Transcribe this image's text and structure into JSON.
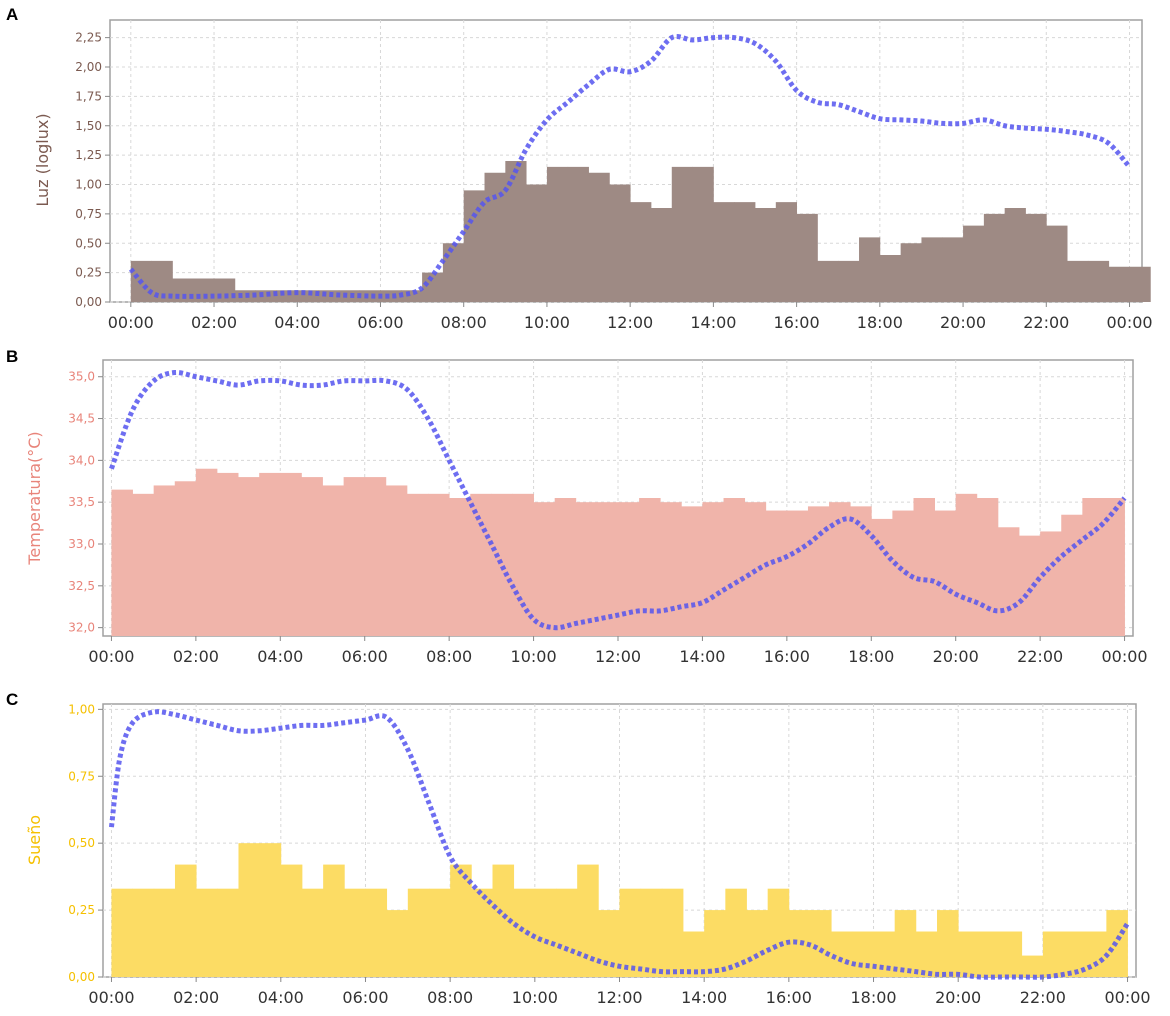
{
  "panels": [
    {
      "letter": "A",
      "ylabel": "Luz (loglux)",
      "label_color": "#7b5a50",
      "bar_color": "#9e8a84",
      "line_color": "#5555ee",
      "yticks": [
        "0,00",
        "0,25",
        "0,50",
        "0,75",
        "1,00",
        "1,25",
        "1,50",
        "1,75",
        "2,00",
        "2,25"
      ],
      "xticks": [
        "00:00",
        "02:00",
        "04:00",
        "06:00",
        "08:00",
        "10:00",
        "12:00",
        "14:00",
        "16:00",
        "18:00",
        "20:00",
        "22:00",
        "00:00"
      ]
    },
    {
      "letter": "B",
      "ylabel": "Temperatura(°C)",
      "label_color": "#e8847a",
      "bar_color": "#f0b4aa",
      "line_color": "#5555ee",
      "yticks": [
        "32,0",
        "32,5",
        "33,0",
        "33,5",
        "34,0",
        "34,5",
        "35,0"
      ],
      "xticks": [
        "00:00",
        "02:00",
        "04:00",
        "06:00",
        "08:00",
        "10:00",
        "12:00",
        "14:00",
        "16:00",
        "18:00",
        "20:00",
        "22:00",
        "00:00"
      ]
    },
    {
      "letter": "C",
      "ylabel": "Sueño",
      "label_color": "#f5c000",
      "bar_color": "#fcdc64",
      "line_color": "#5555ee",
      "yticks": [
        "0,00",
        "0,25",
        "0,50",
        "0,75",
        "1,00"
      ],
      "xticks": [
        "00:00",
        "02:00",
        "04:00",
        "06:00",
        "08:00",
        "10:00",
        "12:00",
        "14:00",
        "16:00",
        "18:00",
        "20:00",
        "22:00",
        "00:00"
      ]
    }
  ],
  "chart_data": [
    {
      "type": "bar",
      "ylabel": "Luz (loglux)",
      "ylim": [
        0,
        2.4
      ],
      "xlim": [
        -0.5,
        24.3
      ],
      "grid": true,
      "bars": {
        "x": [
          0,
          0.5,
          1,
          1.5,
          2,
          2.5,
          3,
          3.5,
          4,
          4.5,
          5,
          5.5,
          6,
          6.5,
          7,
          7.5,
          8,
          8.5,
          9,
          9.5,
          10,
          10.5,
          11,
          11.5,
          12,
          12.5,
          13,
          13.5,
          14,
          14.5,
          15,
          15.5,
          16,
          16.5,
          17,
          17.5,
          18,
          18.5,
          19,
          19.5,
          20,
          20.5,
          21,
          21.5,
          22,
          22.5,
          23,
          23.5,
          24
        ],
        "values": [
          0.35,
          0.35,
          0.2,
          0.2,
          0.2,
          0.1,
          0.1,
          0.1,
          0.1,
          0.1,
          0.1,
          0.1,
          0.1,
          0.1,
          0.25,
          0.5,
          0.95,
          1.1,
          1.2,
          1.0,
          1.15,
          1.15,
          1.1,
          1.0,
          0.85,
          0.8,
          1.15,
          1.15,
          0.85,
          0.85,
          0.8,
          0.85,
          0.75,
          0.35,
          0.35,
          0.55,
          0.4,
          0.5,
          0.55,
          0.55,
          0.65,
          0.75,
          0.8,
          0.75,
          0.65,
          0.35,
          0.35,
          0.3,
          0.3
        ]
      },
      "line": {
        "x": [
          0,
          0.5,
          1,
          2,
          3,
          4,
          5,
          6,
          6.5,
          7,
          7.5,
          8,
          8.5,
          9,
          9.5,
          10,
          10.5,
          11,
          11.5,
          12,
          12.5,
          13,
          13.5,
          14,
          14.5,
          15,
          15.5,
          16,
          16.5,
          17,
          17.5,
          18,
          18.5,
          19,
          19.5,
          20,
          20.5,
          21,
          21.5,
          22,
          22.5,
          23,
          23.5,
          24
        ],
        "values": [
          0.28,
          0.08,
          0.05,
          0.05,
          0.06,
          0.08,
          0.06,
          0.05,
          0.06,
          0.12,
          0.35,
          0.6,
          0.85,
          0.95,
          1.3,
          1.55,
          1.7,
          1.85,
          1.98,
          1.96,
          2.05,
          2.25,
          2.23,
          2.25,
          2.25,
          2.2,
          2.05,
          1.8,
          1.7,
          1.68,
          1.62,
          1.56,
          1.55,
          1.54,
          1.52,
          1.52,
          1.55,
          1.5,
          1.48,
          1.47,
          1.45,
          1.42,
          1.35,
          1.15
        ]
      }
    },
    {
      "type": "bar",
      "ylabel": "Temperatura(°C)",
      "ylim": [
        31.9,
        35.2
      ],
      "xlim": [
        -0.2,
        24.2
      ],
      "grid": true,
      "bars": {
        "x": [
          0,
          0.5,
          1,
          1.5,
          2,
          2.5,
          3,
          3.5,
          4,
          4.5,
          5,
          5.5,
          6,
          6.5,
          7,
          7.5,
          8,
          8.5,
          9,
          9.5,
          10,
          10.5,
          11,
          11.5,
          12,
          12.5,
          13,
          13.5,
          14,
          14.5,
          15,
          15.5,
          16,
          16.5,
          17,
          17.5,
          18,
          18.5,
          19,
          19.5,
          20,
          20.5,
          21,
          21.5,
          22,
          22.5,
          23,
          23.5
        ],
        "values": [
          33.65,
          33.6,
          33.7,
          33.75,
          33.9,
          33.85,
          33.8,
          33.85,
          33.85,
          33.8,
          33.7,
          33.8,
          33.8,
          33.7,
          33.6,
          33.6,
          33.55,
          33.6,
          33.6,
          33.6,
          33.5,
          33.55,
          33.5,
          33.5,
          33.5,
          33.55,
          33.5,
          33.45,
          33.5,
          33.55,
          33.5,
          33.4,
          33.4,
          33.45,
          33.5,
          33.45,
          33.3,
          33.4,
          33.55,
          33.4,
          33.6,
          33.55,
          33.2,
          33.1,
          33.15,
          33.35,
          33.55,
          33.55
        ]
      },
      "line": {
        "x": [
          0,
          0.5,
          1,
          1.5,
          2,
          2.5,
          3,
          3.5,
          4,
          4.5,
          5,
          5.5,
          6,
          6.5,
          7,
          7.5,
          8,
          8.5,
          9,
          9.5,
          10,
          10.5,
          11,
          11.5,
          12,
          12.5,
          13,
          13.5,
          14,
          14.5,
          15,
          15.5,
          16,
          16.5,
          17,
          17.5,
          18,
          18.5,
          19,
          19.5,
          20,
          20.5,
          21,
          21.5,
          22,
          22.5,
          23,
          23.5,
          24
        ],
        "values": [
          33.9,
          34.6,
          34.95,
          35.05,
          35.0,
          34.95,
          34.9,
          34.95,
          34.95,
          34.9,
          34.9,
          34.95,
          34.95,
          34.95,
          34.85,
          34.5,
          34.0,
          33.5,
          33.0,
          32.5,
          32.1,
          32.0,
          32.05,
          32.1,
          32.15,
          32.2,
          32.2,
          32.25,
          32.3,
          32.45,
          32.6,
          32.75,
          32.85,
          33.0,
          33.2,
          33.3,
          33.1,
          32.8,
          32.6,
          32.55,
          32.4,
          32.3,
          32.2,
          32.3,
          32.6,
          32.85,
          33.05,
          33.25,
          33.55
        ]
      }
    },
    {
      "type": "bar",
      "ylabel": "Sueño",
      "ylim": [
        0,
        1.02
      ],
      "xlim": [
        -0.2,
        24.2
      ],
      "grid": true,
      "bars": {
        "x": [
          0,
          0.5,
          1,
          1.5,
          2,
          2.5,
          3,
          3.5,
          4,
          4.5,
          5,
          5.5,
          6,
          6.5,
          7,
          7.5,
          8,
          8.5,
          9,
          9.5,
          10,
          10.5,
          11,
          11.5,
          12,
          12.5,
          13,
          13.5,
          14,
          14.5,
          15,
          15.5,
          16,
          16.5,
          17,
          17.5,
          18,
          18.5,
          19,
          19.5,
          20,
          20.5,
          21,
          21.5,
          22,
          22.5,
          23,
          23.5
        ],
        "values": [
          0.33,
          0.33,
          0.33,
          0.42,
          0.33,
          0.33,
          0.5,
          0.5,
          0.42,
          0.33,
          0.42,
          0.33,
          0.33,
          0.25,
          0.33,
          0.33,
          0.42,
          0.33,
          0.42,
          0.33,
          0.33,
          0.33,
          0.42,
          0.25,
          0.33,
          0.33,
          0.33,
          0.17,
          0.25,
          0.33,
          0.25,
          0.33,
          0.25,
          0.25,
          0.17,
          0.17,
          0.17,
          0.25,
          0.17,
          0.25,
          0.17,
          0.17,
          0.17,
          0.08,
          0.17,
          0.17,
          0.17,
          0.25
        ]
      },
      "line": {
        "x": [
          0,
          0.2,
          0.5,
          1,
          1.5,
          2,
          2.5,
          3,
          3.5,
          4,
          4.5,
          5,
          5.5,
          6,
          6.5,
          7,
          7.5,
          8,
          8.5,
          9,
          9.5,
          10,
          10.5,
          11,
          11.5,
          12,
          12.5,
          13,
          13.5,
          14,
          14.5,
          15,
          15.5,
          16,
          16.5,
          17,
          17.5,
          18,
          18.5,
          19,
          19.5,
          20,
          20.5,
          21,
          21.5,
          22,
          22.5,
          23,
          23.5,
          24
        ],
        "values": [
          0.56,
          0.82,
          0.95,
          0.99,
          0.98,
          0.96,
          0.94,
          0.92,
          0.92,
          0.93,
          0.94,
          0.94,
          0.95,
          0.96,
          0.97,
          0.85,
          0.65,
          0.45,
          0.35,
          0.27,
          0.2,
          0.15,
          0.12,
          0.09,
          0.06,
          0.04,
          0.03,
          0.02,
          0.02,
          0.02,
          0.03,
          0.06,
          0.1,
          0.13,
          0.12,
          0.08,
          0.05,
          0.04,
          0.03,
          0.02,
          0.01,
          0.01,
          0.0,
          0.0,
          0.0,
          0.0,
          0.01,
          0.03,
          0.08,
          0.2
        ]
      }
    }
  ]
}
